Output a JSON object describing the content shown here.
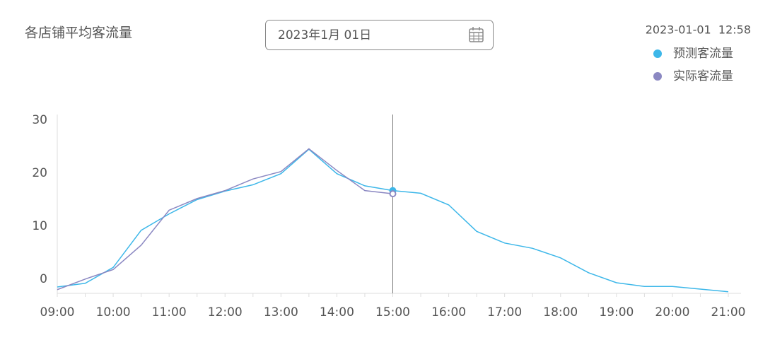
{
  "header": {
    "date_input": "2023年1月 01日",
    "timestamp": "2023-01-01  12:58"
  },
  "chart_data": {
    "type": "line",
    "title": "各店铺平均客流量",
    "categories": [
      "09:00",
      null,
      "10:00",
      null,
      "11:00",
      null,
      "12:00",
      null,
      "13:00",
      null,
      "14:00",
      null,
      "15:00",
      null,
      "16:00",
      null,
      "17:00",
      null,
      "18:00",
      null,
      "19:00",
      null,
      "20:00",
      null,
      "21:00"
    ],
    "series": [
      {
        "name": "预测客流量",
        "color": "#3db7e9",
        "values": [
          -1.5,
          -0.8,
          2.2,
          9.2,
          12.3,
          15,
          16.6,
          17.8,
          19.9,
          24.5,
          19.9,
          17.6,
          16.7,
          16.2,
          14,
          9,
          6.8,
          5.8,
          4,
          1.2,
          -0.7,
          -1.4,
          -1.4,
          -1.9,
          -2.4
        ]
      },
      {
        "name": "实际客流量",
        "color": "#8b88c2",
        "values": [
          -2,
          0,
          1.8,
          6.4,
          13,
          15.2,
          16.7,
          18.9,
          20.3,
          24.6,
          20.5,
          16.7,
          16.1,
          null,
          null,
          null,
          null,
          null,
          null,
          null,
          null,
          null,
          null,
          null,
          null
        ]
      }
    ],
    "ylim": [
      -2.7,
      30
    ],
    "yticks": [
      0,
      10,
      20,
      30
    ],
    "grid": false,
    "legend": "top-right",
    "highlighted_index": 12
  }
}
